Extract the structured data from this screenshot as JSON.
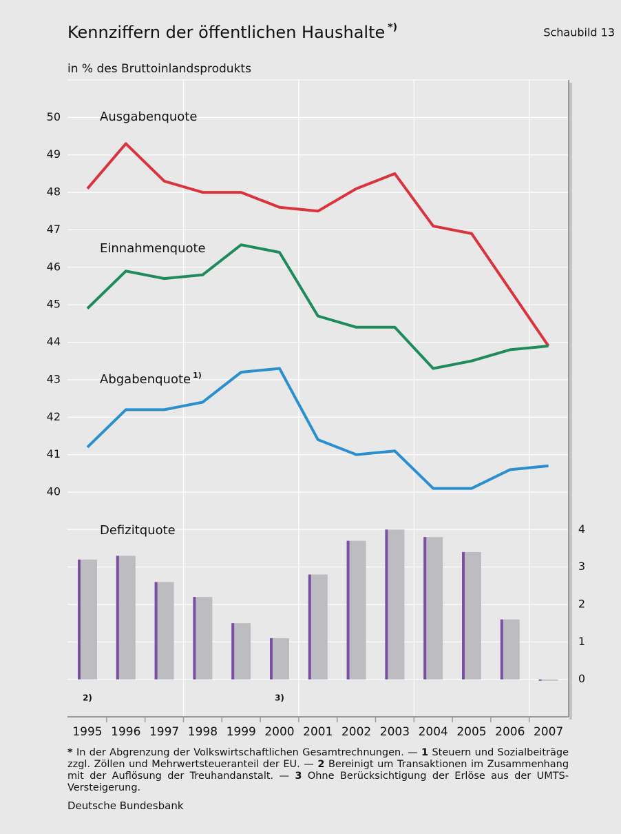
{
  "header": {
    "title": "Kennziffern der öffentlichen Haushalte",
    "title_note": "*)",
    "figure_label": "Schaubild 13",
    "subtitle": "in % des Bruttoinlandsprodukts"
  },
  "chart_data": {
    "type": "line",
    "categories": [
      "1995",
      "1996",
      "1997",
      "1998",
      "1999",
      "2000",
      "2001",
      "2002",
      "2003",
      "2004",
      "2005",
      "2006",
      "2007"
    ],
    "series": [
      {
        "name": "Ausgabenquote",
        "color": "#d9333d",
        "values": [
          48.1,
          49.3,
          48.3,
          48.0,
          48.0,
          47.6,
          47.5,
          48.1,
          48.5,
          47.1,
          46.9,
          45.4,
          43.9
        ]
      },
      {
        "name": "Einnahmenquote",
        "color": "#1f8a5b",
        "values": [
          44.9,
          45.9,
          45.7,
          45.8,
          46.6,
          46.4,
          44.7,
          44.4,
          44.4,
          43.3,
          43.5,
          43.8,
          43.9
        ]
      },
      {
        "name": "Abgabenquote",
        "note": "1)",
        "color": "#2b8fcd",
        "values": [
          41.2,
          42.2,
          42.2,
          42.4,
          43.2,
          43.3,
          41.4,
          41.0,
          41.1,
          40.1,
          40.1,
          40.6,
          40.7
        ]
      },
      {
        "name": "Defizitquote",
        "type": "bar",
        "axis": "y2",
        "color": "#bdbdc1",
        "edge_color": "#7b4fa3",
        "values": [
          3.2,
          3.3,
          2.6,
          2.2,
          1.5,
          1.1,
          2.8,
          3.7,
          4.0,
          3.8,
          3.4,
          1.6,
          0.0
        ]
      }
    ],
    "ylim": [
      40,
      51
    ],
    "yticks": [
      40,
      41,
      42,
      43,
      44,
      45,
      46,
      47,
      48,
      49,
      50
    ],
    "y2lim": [
      -1,
      5
    ],
    "y2ticks": [
      0,
      1,
      2,
      3,
      4
    ],
    "grid": true,
    "annotations": [
      {
        "text": "2)",
        "x": "1995"
      },
      {
        "text": "3)",
        "x": "2000"
      }
    ]
  },
  "footnotes": [
    {
      "marker": "*",
      "text": "In der Abgrenzung der Volkswirtschaftlichen Gesamtrechnungen. —"
    },
    {
      "marker": "1",
      "text": "Steuern und Sozialbeiträge zzgl. Zöllen und Mehrwertsteueranteil der EU. —"
    },
    {
      "marker": "2",
      "text": "Bereinigt um Transaktionen im Zusammenhang mit der Auflösung der Treuhandanstalt. —"
    },
    {
      "marker": "3",
      "text": "Ohne Berücksichtigung der Erlöse aus der UMTS-Versteigerung."
    }
  ],
  "source": "Deutsche Bundesbank"
}
